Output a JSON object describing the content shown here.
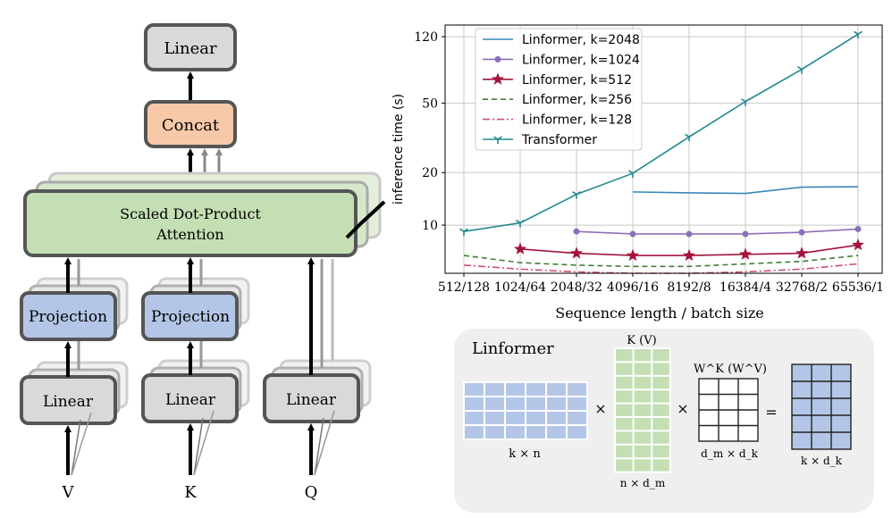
{
  "diagram": {
    "linear_top": "Linear",
    "concat": "Concat",
    "attention_line1": "Scaled Dot-Product",
    "attention_line2": "Attention",
    "projection_v": "Projection",
    "projection_k": "Projection",
    "linear_v": "Linear",
    "linear_k": "Linear",
    "linear_q": "Linear",
    "input_v": "V",
    "input_k": "K",
    "input_q": "Q",
    "colors": {
      "linear": "#d9d9d9",
      "concat": "#f8c9a8",
      "attention": "#c4dfb4",
      "projection": "#b4c6e7",
      "border": "#555555"
    }
  },
  "chart_data": {
    "type": "line",
    "categories": [
      "512/128",
      "1024/64",
      "2048/32",
      "4096/16",
      "8192/8",
      "16384/4",
      "32768/2",
      "65536/1"
    ],
    "xlabel": "Sequence length / batch size",
    "ylabel": "inference time (s)",
    "y_scale": "log",
    "ylim": [
      5.3,
      140
    ],
    "yticks": [
      10,
      20,
      50,
      120
    ],
    "grid": true,
    "legend_position": "top-left",
    "series": [
      {
        "name": "Linformer, k=2048",
        "color": "#3a87b8",
        "marker": "none",
        "dash": "solid",
        "values": [
          null,
          null,
          null,
          15.5,
          15.3,
          15.2,
          16.5,
          16.6
        ]
      },
      {
        "name": "Linformer, k=1024",
        "color": "#8c6fb8",
        "marker": "circle",
        "dash": "solid",
        "values": [
          null,
          null,
          9.2,
          8.9,
          8.9,
          8.9,
          9.1,
          9.5
        ]
      },
      {
        "name": "Linformer, k=512",
        "color": "#a3133a",
        "marker": "star",
        "dash": "solid",
        "values": [
          null,
          7.3,
          6.9,
          6.7,
          6.7,
          6.8,
          6.9,
          7.7
        ]
      },
      {
        "name": "Linformer, k=256",
        "color": "#3f7f32",
        "marker": "none",
        "dash": "dashed",
        "values": [
          6.7,
          6.1,
          5.9,
          5.8,
          5.8,
          6.0,
          6.2,
          6.7
        ]
      },
      {
        "name": "Linformer, k=128",
        "color": "#d3506d",
        "marker": "none",
        "dash": "dashdot",
        "values": [
          5.9,
          5.6,
          5.4,
          5.3,
          5.3,
          5.4,
          5.6,
          6.0
        ]
      },
      {
        "name": "Transformer",
        "color": "#238a8d",
        "marker": "tri",
        "dash": "solid",
        "values": [
          9.2,
          10.3,
          15.0,
          19.8,
          32,
          51,
          78,
          124
        ]
      }
    ]
  },
  "inset": {
    "title": "Linformer",
    "k_v_label": "K (V)",
    "w_label": "W^K (W^V)",
    "times1": "×",
    "times2": "×",
    "equals": "=",
    "dim_kn": "k × n",
    "dim_n_dm": "n × d_m",
    "dim_dm_dk": "d_m × d_k",
    "dim_k_dk": "k × d_k",
    "colors": {
      "blue": "#b4c6e7",
      "green": "#c4dfb4",
      "white": "#ffffff",
      "panel": "#efefef"
    }
  }
}
